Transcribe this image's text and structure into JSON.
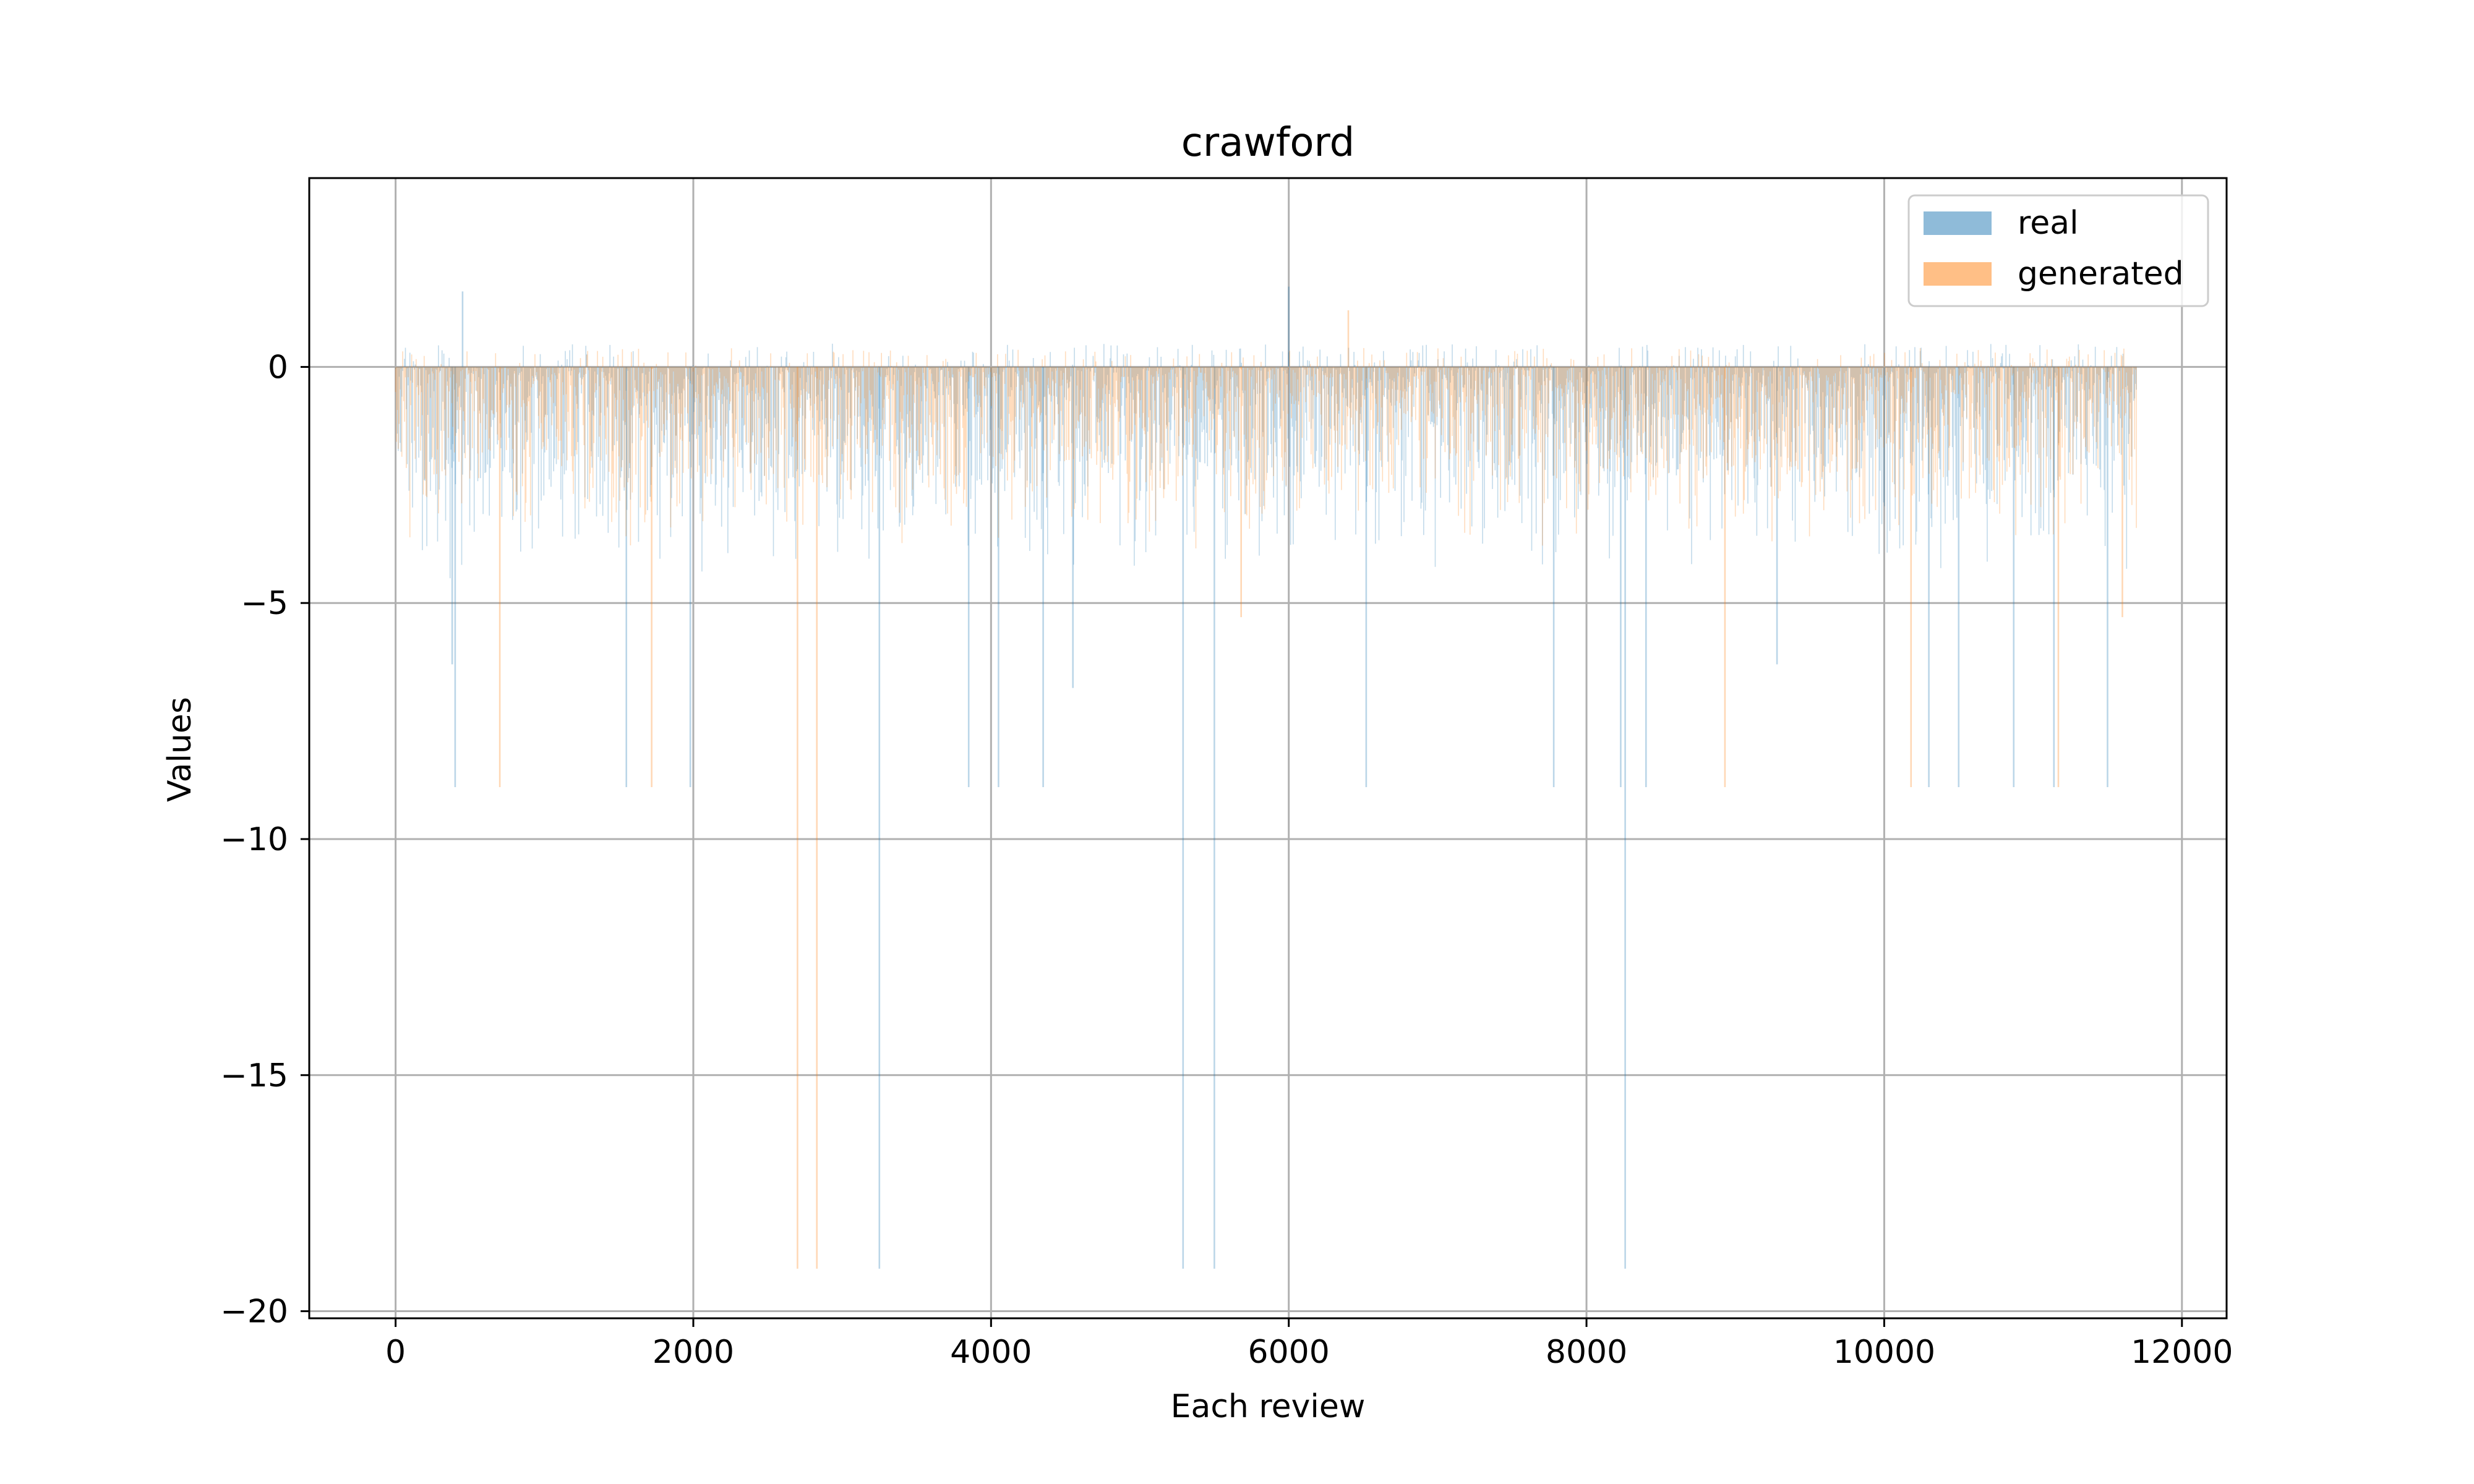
{
  "chart_data": {
    "type": "bar",
    "title": "crawford",
    "xlabel": "Each review",
    "ylabel": "Values",
    "xlim": [
      -580,
      12300
    ],
    "ylim": [
      -20.15,
      4.0
    ],
    "x_ticks": [
      0,
      2000,
      4000,
      6000,
      8000,
      10000,
      12000
    ],
    "x_tick_labels": [
      "0",
      "2000",
      "4000",
      "6000",
      "8000",
      "10000",
      "12000"
    ],
    "y_ticks": [
      0,
      -5,
      -10,
      -15,
      -20
    ],
    "y_tick_labels": [
      "0",
      "−5",
      "−10",
      "−15",
      "−20"
    ],
    "grid": true,
    "legend_position": "top-right",
    "n_points": 11700,
    "series": [
      {
        "name": "real",
        "color": "#1f77b4",
        "alpha": 0.5,
        "typical_range": [
          -3.5,
          0.5
        ],
        "spikes": [
          {
            "x": 380,
            "y": -6.3
          },
          {
            "x": 400,
            "y": -8.9
          },
          {
            "x": 450,
            "y": 1.6
          },
          {
            "x": 1550,
            "y": -8.9
          },
          {
            "x": 1980,
            "y": -8.9
          },
          {
            "x": 3250,
            "y": -19.1
          },
          {
            "x": 3850,
            "y": -8.9
          },
          {
            "x": 4050,
            "y": -8.9
          },
          {
            "x": 4350,
            "y": -8.9
          },
          {
            "x": 4550,
            "y": -6.8
          },
          {
            "x": 5290,
            "y": -19.1
          },
          {
            "x": 5500,
            "y": -19.1
          },
          {
            "x": 6000,
            "y": 1.7
          },
          {
            "x": 6520,
            "y": -8.9
          },
          {
            "x": 7780,
            "y": -8.9
          },
          {
            "x": 8230,
            "y": -8.9
          },
          {
            "x": 8260,
            "y": -19.1
          },
          {
            "x": 8400,
            "y": -8.9
          },
          {
            "x": 9280,
            "y": -6.3
          },
          {
            "x": 10300,
            "y": -8.9
          },
          {
            "x": 10500,
            "y": -8.9
          },
          {
            "x": 10870,
            "y": -8.9
          },
          {
            "x": 11140,
            "y": -8.9
          },
          {
            "x": 11500,
            "y": -8.9
          }
        ]
      },
      {
        "name": "generated",
        "color": "#ff7f0e",
        "alpha": 0.5,
        "typical_range": [
          -3.0,
          0.4
        ],
        "spikes": [
          {
            "x": 700,
            "y": -8.9
          },
          {
            "x": 1720,
            "y": -8.9
          },
          {
            "x": 2700,
            "y": -19.1
          },
          {
            "x": 2830,
            "y": -19.1
          },
          {
            "x": 5680,
            "y": -5.3
          },
          {
            "x": 6400,
            "y": 1.2
          },
          {
            "x": 8930,
            "y": -8.9
          },
          {
            "x": 10180,
            "y": -8.9
          },
          {
            "x": 11170,
            "y": -8.9
          },
          {
            "x": 11600,
            "y": -5.3
          }
        ]
      }
    ]
  }
}
